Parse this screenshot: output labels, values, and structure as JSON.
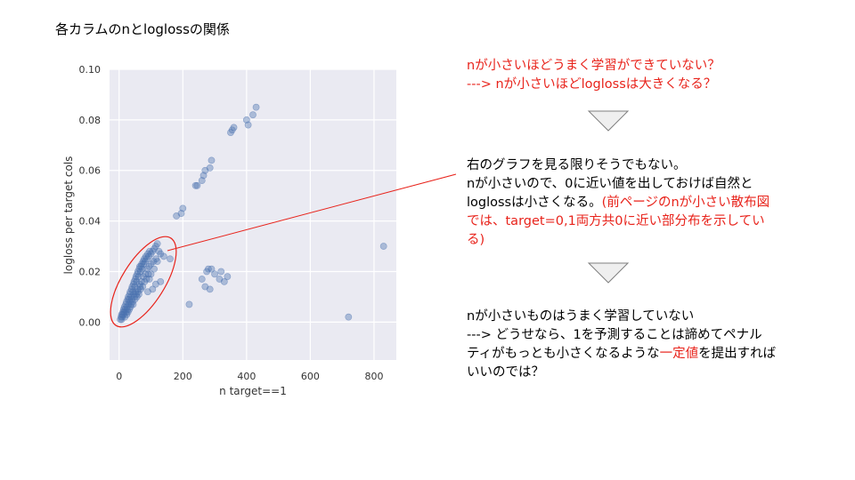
{
  "slide": {
    "title": "各カラムのnとloglossの関係"
  },
  "notes": {
    "red_line1": "nが小さいほどうまく学習ができていない？",
    "red_line2": "---> nが小さいほどloglossは大きくなる？",
    "block1_line1": "右のグラフを見る限りそうでもない。",
    "block1_line2": "nが小さいので、0に近い値を出しておけば自然と",
    "block1_line3_black": "loglossは小さくなる。",
    "block1_line3_red": "(前ページのnが小さい散布図",
    "block1_line4_red": "では、target=0,1両方共0に近い部分布を示してい",
    "block1_line5_red": "る)",
    "block2_line1": "nが小さいものはうまく学習していない",
    "block2_line2": "---> どうせなら、1を予測することは諦めてペナル",
    "block2_line3a": "ティがもっとも小さくなるような",
    "block2_line3_red": "一定値",
    "block2_line3b": "を提出すれば",
    "block2_line4": "いいのでは？"
  },
  "colors": {
    "accent_red": "#e8231b",
    "plot_bg": "#eaeaf2",
    "point": "#4c72b0",
    "arrow_fill": "#efefef",
    "arrow_stroke": "#7f7f7f"
  },
  "chart_data": {
    "type": "scatter",
    "xlabel": "n target==1",
    "ylabel": "logloss per target cols",
    "xlim": [
      -30,
      870
    ],
    "ylim": [
      -0.015,
      0.1
    ],
    "x_ticks": [
      0,
      200,
      400,
      600,
      800
    ],
    "y_ticks": [
      0.0,
      0.02,
      0.04,
      0.06,
      0.08,
      0.1
    ],
    "x_tick_labels": [
      "0",
      "200",
      "400",
      "600",
      "800"
    ],
    "y_tick_labels": [
      "0.00",
      "0.02",
      "0.04",
      "0.06",
      "0.08",
      "0.10"
    ],
    "grid": true,
    "points": [
      [
        4,
        0.001
      ],
      [
        6,
        0.002
      ],
      [
        8,
        0.003
      ],
      [
        10,
        0.002
      ],
      [
        12,
        0.004
      ],
      [
        14,
        0.005
      ],
      [
        15,
        0.003
      ],
      [
        17,
        0.006
      ],
      [
        19,
        0.005
      ],
      [
        21,
        0.007
      ],
      [
        23,
        0.008
      ],
      [
        25,
        0.006
      ],
      [
        27,
        0.009
      ],
      [
        29,
        0.01
      ],
      [
        31,
        0.009
      ],
      [
        33,
        0.011
      ],
      [
        35,
        0.012
      ],
      [
        37,
        0.01
      ],
      [
        39,
        0.013
      ],
      [
        41,
        0.014
      ],
      [
        43,
        0.012
      ],
      [
        45,
        0.015
      ],
      [
        47,
        0.016
      ],
      [
        49,
        0.014
      ],
      [
        51,
        0.017
      ],
      [
        53,
        0.018
      ],
      [
        55,
        0.016
      ],
      [
        57,
        0.019
      ],
      [
        59,
        0.02
      ],
      [
        61,
        0.018
      ],
      [
        63,
        0.021
      ],
      [
        65,
        0.022
      ],
      [
        67,
        0.02
      ],
      [
        69,
        0.022
      ],
      [
        71,
        0.023
      ],
      [
        73,
        0.021
      ],
      [
        75,
        0.024
      ],
      [
        77,
        0.023
      ],
      [
        79,
        0.025
      ],
      [
        81,
        0.024
      ],
      [
        84,
        0.026
      ],
      [
        87,
        0.025
      ],
      [
        90,
        0.027
      ],
      [
        93,
        0.026
      ],
      [
        96,
        0.028
      ],
      [
        100,
        0.027
      ],
      [
        105,
        0.028
      ],
      [
        110,
        0.029
      ],
      [
        115,
        0.03
      ],
      [
        120,
        0.031
      ],
      [
        8,
        0.001
      ],
      [
        11,
        0.003
      ],
      [
        16,
        0.004
      ],
      [
        22,
        0.004
      ],
      [
        26,
        0.005
      ],
      [
        30,
        0.007
      ],
      [
        34,
        0.008
      ],
      [
        40,
        0.009
      ],
      [
        46,
        0.011
      ],
      [
        52,
        0.012
      ],
      [
        58,
        0.013
      ],
      [
        64,
        0.015
      ],
      [
        70,
        0.016
      ],
      [
        76,
        0.018
      ],
      [
        82,
        0.019
      ],
      [
        88,
        0.021
      ],
      [
        94,
        0.022
      ],
      [
        100,
        0.023
      ],
      [
        108,
        0.024
      ],
      [
        116,
        0.025
      ],
      [
        36,
        0.006
      ],
      [
        44,
        0.007
      ],
      [
        50,
        0.009
      ],
      [
        56,
        0.01
      ],
      [
        62,
        0.011
      ],
      [
        68,
        0.013
      ],
      [
        74,
        0.014
      ],
      [
        80,
        0.016
      ],
      [
        86,
        0.017
      ],
      [
        92,
        0.019
      ],
      [
        18,
        0.002
      ],
      [
        24,
        0.003
      ],
      [
        28,
        0.004
      ],
      [
        32,
        0.005
      ],
      [
        38,
        0.007
      ],
      [
        42,
        0.008
      ],
      [
        48,
        0.01
      ],
      [
        54,
        0.011
      ],
      [
        60,
        0.012
      ],
      [
        66,
        0.014
      ],
      [
        110,
        0.021
      ],
      [
        120,
        0.024
      ],
      [
        125,
        0.028
      ],
      [
        130,
        0.027
      ],
      [
        100,
        0.019
      ],
      [
        95,
        0.017
      ],
      [
        105,
        0.013
      ],
      [
        115,
        0.015
      ],
      [
        130,
        0.016
      ],
      [
        90,
        0.012
      ],
      [
        160,
        0.025
      ],
      [
        140,
        0.026
      ],
      [
        180,
        0.042
      ],
      [
        195,
        0.043
      ],
      [
        200,
        0.045
      ],
      [
        240,
        0.054
      ],
      [
        245,
        0.054
      ],
      [
        260,
        0.056
      ],
      [
        265,
        0.058
      ],
      [
        270,
        0.06
      ],
      [
        285,
        0.061
      ],
      [
        290,
        0.064
      ],
      [
        350,
        0.075
      ],
      [
        355,
        0.076
      ],
      [
        400,
        0.08
      ],
      [
        405,
        0.078
      ],
      [
        420,
        0.082
      ],
      [
        430,
        0.085
      ],
      [
        360,
        0.077
      ],
      [
        220,
        0.007
      ],
      [
        260,
        0.017
      ],
      [
        270,
        0.014
      ],
      [
        275,
        0.02
      ],
      [
        280,
        0.021
      ],
      [
        290,
        0.021
      ],
      [
        285,
        0.013
      ],
      [
        300,
        0.019
      ],
      [
        315,
        0.017
      ],
      [
        330,
        0.016
      ],
      [
        340,
        0.018
      ],
      [
        320,
        0.02
      ],
      [
        720,
        0.002
      ],
      [
        830,
        0.03
      ]
    ]
  }
}
